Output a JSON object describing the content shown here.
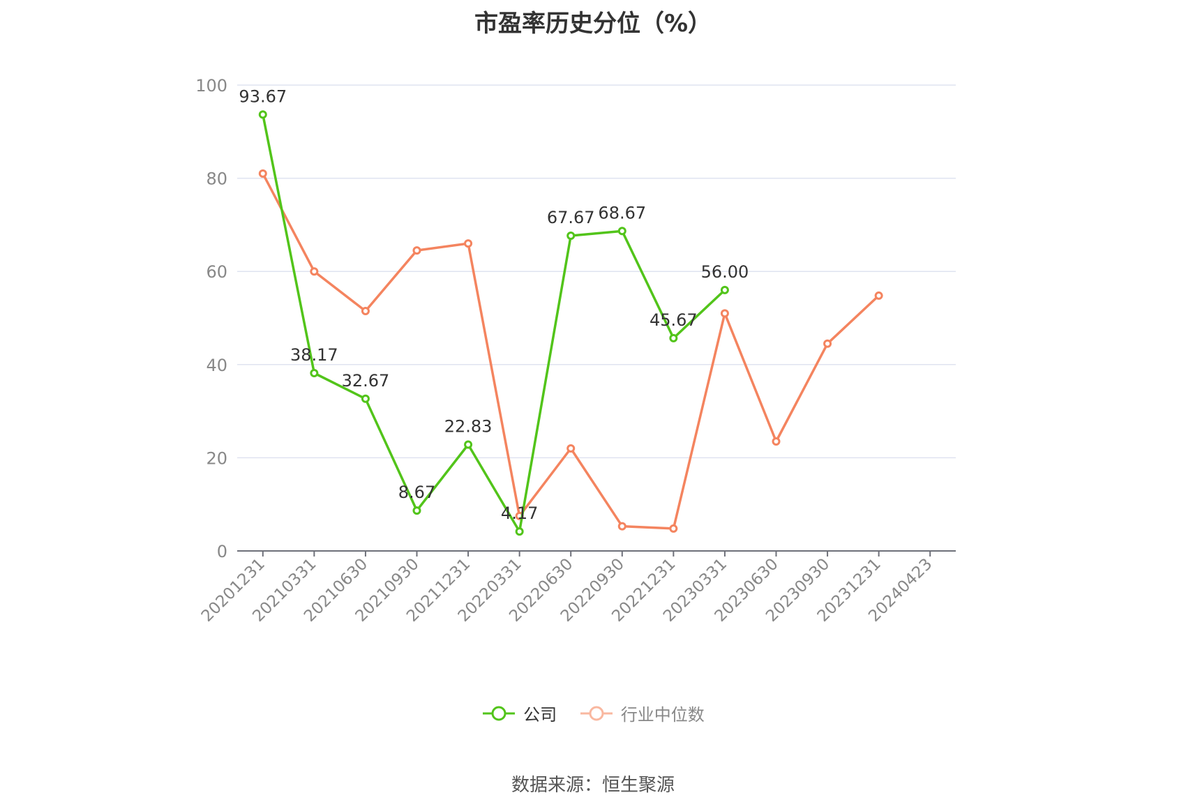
{
  "chart_data": {
    "type": "line",
    "title": "市盈率历史分位（%）",
    "categories": [
      "20201231",
      "20210331",
      "20210630",
      "20210930",
      "20211231",
      "20220331",
      "20220630",
      "20220930",
      "20221231",
      "20230331",
      "20230630",
      "20230930",
      "20231231",
      "20240423"
    ],
    "ylim": [
      0,
      100
    ],
    "yticks": [
      0,
      20,
      40,
      60,
      80,
      100
    ],
    "grid": true,
    "legend_position": "bottom",
    "series": [
      {
        "name": "公司",
        "color": "#52c41a",
        "values": [
          93.67,
          38.17,
          32.67,
          8.67,
          22.83,
          4.17,
          67.67,
          68.67,
          45.67,
          56.0,
          null,
          null,
          null,
          null
        ],
        "data_labels": [
          "93.67",
          "38.17",
          "32.67",
          "8.67",
          "22.83",
          "4.17",
          "67.67",
          "68.67",
          "45.67",
          "56.00",
          "",
          "",
          "",
          ""
        ]
      },
      {
        "name": "行业中位数",
        "color": "#f4845f",
        "values": [
          81.0,
          60.0,
          51.5,
          64.5,
          66.0,
          7.5,
          22.0,
          5.3,
          4.8,
          51.0,
          23.5,
          44.5,
          54.8,
          null
        ]
      }
    ]
  },
  "source_text": "数据来源：恒生聚源"
}
